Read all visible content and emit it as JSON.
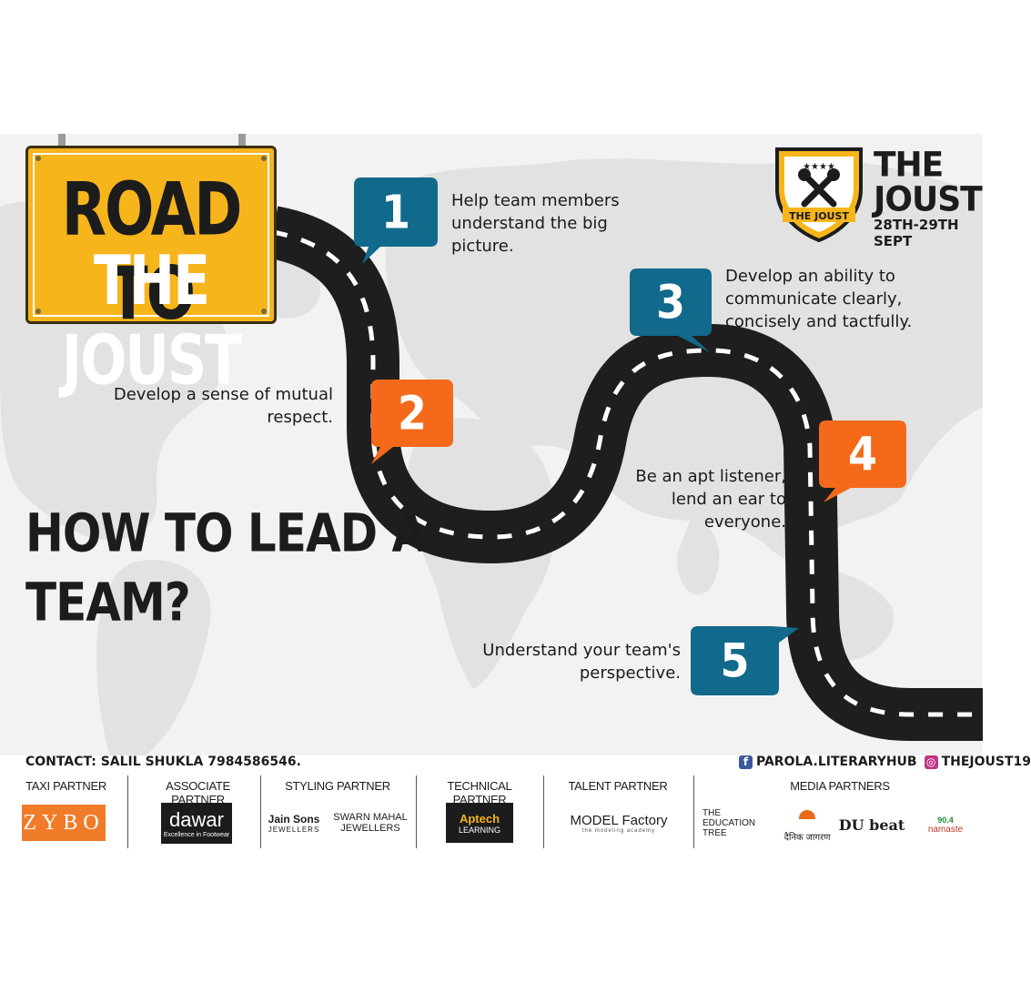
{
  "sign": {
    "line1": "ROAD TO",
    "line2": "THE JOUST"
  },
  "brand": {
    "shield_text": "THE JOUST",
    "title": "THE\nJOUST",
    "dates": "28TH-29TH SEPT",
    "colors": {
      "shield_yellow": "#f7b51c",
      "shield_dark": "#1c1c1c"
    }
  },
  "headline": "HOW TO LEAD A\nTEAM?",
  "steps": [
    {
      "number": "1",
      "text": "Help team members\nunderstand the big\npicture.",
      "color": "#11698c"
    },
    {
      "number": "2",
      "text": "Develop a sense of mutual\nrespect.",
      "color": "#f46a1a"
    },
    {
      "number": "3",
      "text": "Develop an ability to\ncommunicate clearly,\nconcisely and tactfully.",
      "color": "#11698c"
    },
    {
      "number": "4",
      "text": "Be an apt listener,\nlend an ear to\neveryone.",
      "color": "#f46a1a"
    },
    {
      "number": "5",
      "text": "Understand your team's\nperspective.",
      "color": "#11698c"
    }
  ],
  "contact": "CONTACT: SALIL SHUKLA 7984586546.",
  "social": {
    "facebook_icon": "facebook-icon",
    "facebook": "PAROLA.LITERARYHUB",
    "instagram_icon": "instagram-icon",
    "instagram": "THEJOUST19"
  },
  "partners": [
    {
      "label": "TAXI PARTNER",
      "logos": [
        "ZYBO"
      ]
    },
    {
      "label": "ASSOCIATE PARTNER",
      "logos": [
        "dawar",
        "Excellence in Footwear"
      ]
    },
    {
      "label": "STYLING PARTNER",
      "logos": [
        "Jain Sons",
        "JEWELLERS",
        "SWARN MAHAL",
        "JEWELLERS"
      ]
    },
    {
      "label": "TECHNICAL PARTNER",
      "logos": [
        "Aptech",
        "LEARNING"
      ]
    },
    {
      "label": "TALENT PARTNER",
      "logos": [
        "MODEL Factory",
        "the modeling academy"
      ]
    },
    {
      "label": "MEDIA PARTNERS",
      "logos": [
        "THE EDUCATION TREE",
        "दैनिक जागरण",
        "DU beat",
        "90.4",
        "namaste"
      ]
    }
  ],
  "colors": {
    "road": "#1e1e1e",
    "road_marks": "#ffffff",
    "map": "#e2e2e2",
    "background": "#f2f2f2"
  }
}
